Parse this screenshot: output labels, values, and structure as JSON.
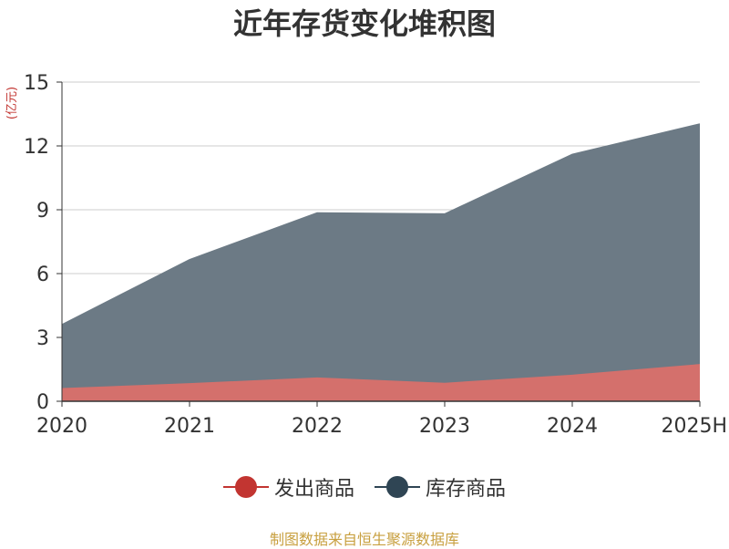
{
  "chart_data": {
    "type": "area",
    "stacked": true,
    "title": "近年存货变化堆积图",
    "unit_label": "(亿元)",
    "categories": [
      "2020",
      "2021",
      "2022",
      "2023",
      "2024",
      "2025H"
    ],
    "ylim": [
      0,
      15
    ],
    "yticks": [
      0,
      3,
      6,
      9,
      12,
      15
    ],
    "grid": true,
    "legend_position": "bottom",
    "series": [
      {
        "name": "发出商品",
        "values": [
          0.62,
          0.85,
          1.12,
          0.87,
          1.25,
          1.75
        ],
        "color": "#d4706c"
      },
      {
        "name": "库存商品",
        "values": [
          2.98,
          5.8,
          7.73,
          7.93,
          10.35,
          11.28
        ],
        "color": "#6c7a85"
      }
    ]
  },
  "legend": [
    {
      "label": "发出商品",
      "color": "#c23531"
    },
    {
      "label": "库存商品",
      "color": "#2f4554"
    }
  ],
  "source": "制图数据来自恒生聚源数据库"
}
